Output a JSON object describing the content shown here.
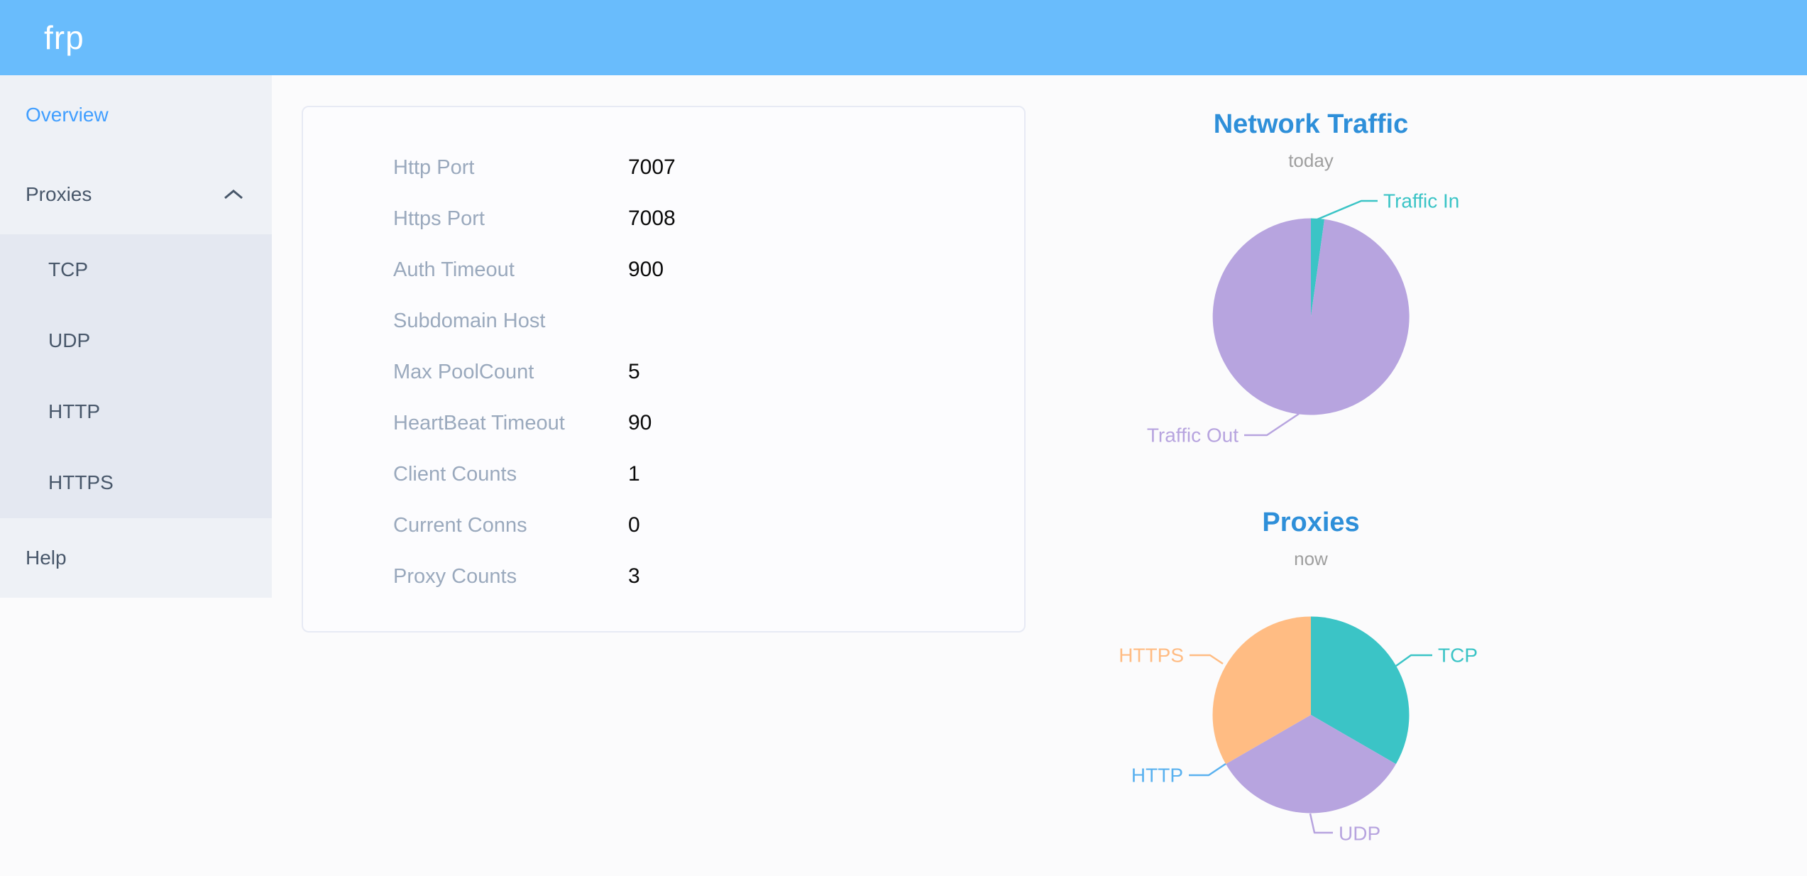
{
  "header": {
    "brand": "frp"
  },
  "theme": {
    "header_bg": "#69BCFC",
    "sidebar_bg": "#EEF1F6",
    "submenu_bg": "#E4E8F1",
    "active_link": "#409EFF",
    "menu_text": "#48576A",
    "label_gray": "#9AA9BD",
    "chart_title": "#2E8FD9",
    "chart_subtitle": "#9E9E9E"
  },
  "sidebar": {
    "items": [
      {
        "label": "Overview",
        "active": true
      },
      {
        "label": "Proxies",
        "expanded": true,
        "children": [
          {
            "label": "TCP"
          },
          {
            "label": "UDP"
          },
          {
            "label": "HTTP"
          },
          {
            "label": "HTTPS"
          }
        ]
      },
      {
        "label": "Help"
      }
    ]
  },
  "overview_panel": {
    "rows": [
      {
        "label": "Http Port",
        "value": "7007"
      },
      {
        "label": "Https Port",
        "value": "7008"
      },
      {
        "label": "Auth Timeout",
        "value": "900"
      },
      {
        "label": "Subdomain Host",
        "value": ""
      },
      {
        "label": "Max PoolCount",
        "value": "5"
      },
      {
        "label": "HeartBeat Timeout",
        "value": "90"
      },
      {
        "label": "Client Counts",
        "value": "1"
      },
      {
        "label": "Current Conns",
        "value": "0"
      },
      {
        "label": "Proxy Counts",
        "value": "3"
      }
    ]
  },
  "chart_data": [
    {
      "type": "pie",
      "title": "Network Traffic",
      "subtitle": "today",
      "legend": "none",
      "label_position": "outside",
      "start_angle_deg": 0,
      "values_are": "percent_of_circle_estimated",
      "slices": [
        {
          "label": "Traffic In",
          "value": 2.2,
          "color": "#3BC4C6"
        },
        {
          "label": "Traffic Out",
          "value": 97.8,
          "color": "#B7A4DF"
        }
      ]
    },
    {
      "type": "pie",
      "title": "Proxies",
      "subtitle": "now",
      "legend": "none",
      "label_position": "outside",
      "start_angle_deg": 0,
      "values_are": "proxy_counts",
      "slices": [
        {
          "label": "TCP",
          "value": 1,
          "color": "#3BC4C6"
        },
        {
          "label": "UDP",
          "value": 1,
          "color": "#B7A4DF"
        },
        {
          "label": "HTTP",
          "value": 0,
          "color": "#5AB1EF"
        },
        {
          "label": "HTTPS",
          "value": 1,
          "color": "#FFBC83"
        }
      ]
    }
  ]
}
